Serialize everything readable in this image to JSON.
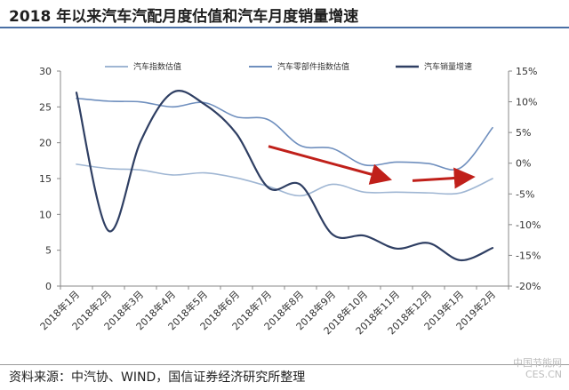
{
  "title": "2018 年以来汽车汽配月度估值和汽车月度销量增速",
  "source": "资料来源：中汽协、WIND，国信证券经济研究所整理",
  "watermark": {
    "line1": "中国节能网",
    "line2": "CES.CN"
  },
  "chart_data": {
    "type": "line",
    "categories": [
      "2018年1月",
      "2018年2月",
      "2018年3月",
      "2018年4月",
      "2018年5月",
      "2018年6月",
      "2018年7月",
      "2018年8月",
      "2018年9月",
      "2018年10月",
      "2018年11月",
      "2018年12月",
      "2019年1月",
      "2019年2月"
    ],
    "yleft": {
      "range": [
        0,
        30
      ],
      "ticks": [
        0,
        5,
        10,
        15,
        20,
        25,
        30
      ]
    },
    "yright": {
      "range": [
        -20,
        15
      ],
      "ticks": [
        15,
        10,
        5,
        0,
        -5,
        -10,
        -15,
        -20
      ],
      "tick_labels": [
        "15%",
        "10%",
        "5%",
        "0%",
        "-5%",
        "-10%",
        "-15%",
        "-20%"
      ]
    },
    "series": [
      {
        "name": "汽车指数估值",
        "axis": "left",
        "color": "#9fb6d3",
        "width": 1.6,
        "values": [
          17.0,
          16.4,
          16.2,
          15.5,
          15.8,
          15.1,
          13.9,
          12.6,
          14.2,
          13.1,
          13.1,
          13.0,
          13.0,
          15.0
        ]
      },
      {
        "name": "汽车零部件指数估值",
        "axis": "left",
        "color": "#6f8fbe",
        "width": 1.6,
        "values": [
          26.2,
          25.8,
          25.7,
          25.0,
          25.6,
          23.6,
          23.2,
          19.6,
          19.2,
          16.9,
          17.3,
          17.1,
          16.5,
          22.1
        ]
      },
      {
        "name": "汽车销量增速",
        "axis": "right",
        "color": "#2f3f63",
        "width": 2.2,
        "values": [
          11.5,
          -11.0,
          3.5,
          11.5,
          9.6,
          4.8,
          -4.0,
          -3.5,
          -11.6,
          -11.8,
          -13.9,
          -13.0,
          -15.8,
          -13.8
        ]
      }
    ],
    "annotations": [
      {
        "type": "arrow",
        "color": "#c0201a",
        "from": {
          "x": 6,
          "y": 19.5
        },
        "to": {
          "x": 9.7,
          "y": 15.0
        }
      },
      {
        "type": "arrow",
        "color": "#c0201a",
        "from": {
          "x": 10.5,
          "y": 14.7
        },
        "to": {
          "x": 12.3,
          "y": 15.2
        }
      }
    ],
    "legend": "top"
  }
}
